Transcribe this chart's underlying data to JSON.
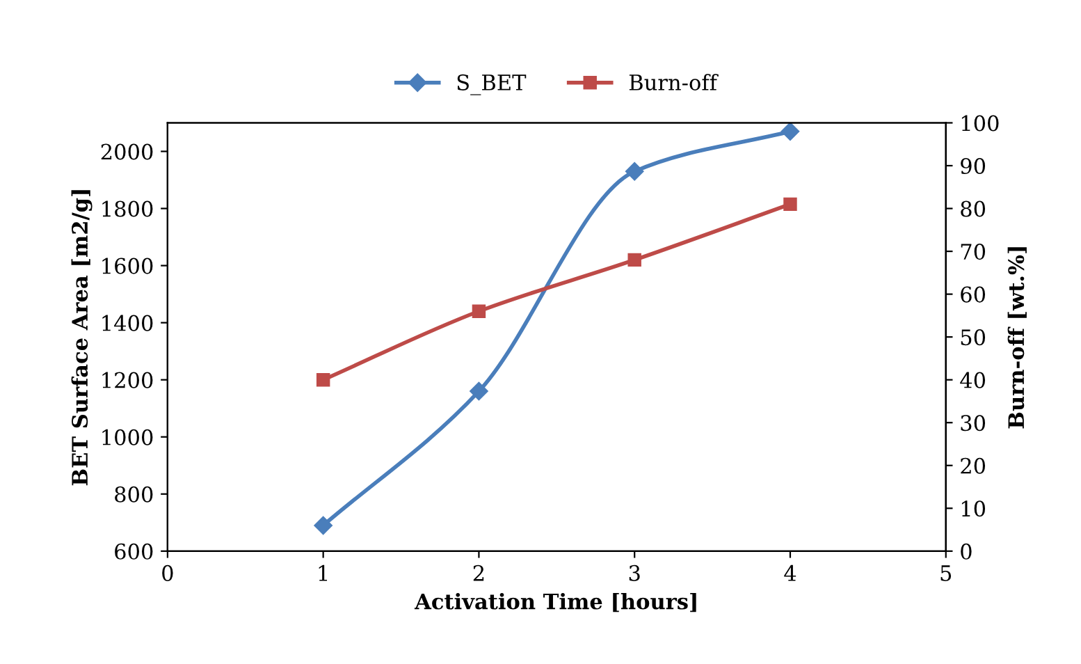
{
  "chart_data": {
    "type": "line",
    "xlabel": "Activation Time [hours]",
    "ylabel": "BET Surface Area [m2/g]",
    "y2label": "Burn-off [wt.%]",
    "x": [
      1,
      2,
      3,
      4
    ],
    "series": [
      {
        "name": "S_BET",
        "color": "#4a7ebb",
        "values": [
          690,
          1160,
          1930,
          2070
        ],
        "marker": "diamond"
      },
      {
        "name": "Burn-off",
        "color": "#be4b48",
        "values": [
          40,
          56,
          68,
          81
        ],
        "marker": "square",
        "axis": "y2"
      }
    ],
    "xlim": [
      0,
      5
    ],
    "xticks": [
      0,
      1,
      2,
      3,
      4,
      5
    ],
    "ylim": [
      600,
      2100
    ],
    "yticks": [
      600,
      800,
      1000,
      1200,
      1400,
      1600,
      1800,
      2000
    ],
    "y2lim": [
      0,
      100
    ],
    "y2ticks": [
      0,
      10,
      20,
      30,
      40,
      50,
      60,
      70,
      80,
      90,
      100
    ],
    "legend": "top",
    "grid": false,
    "line_style": "solid"
  }
}
